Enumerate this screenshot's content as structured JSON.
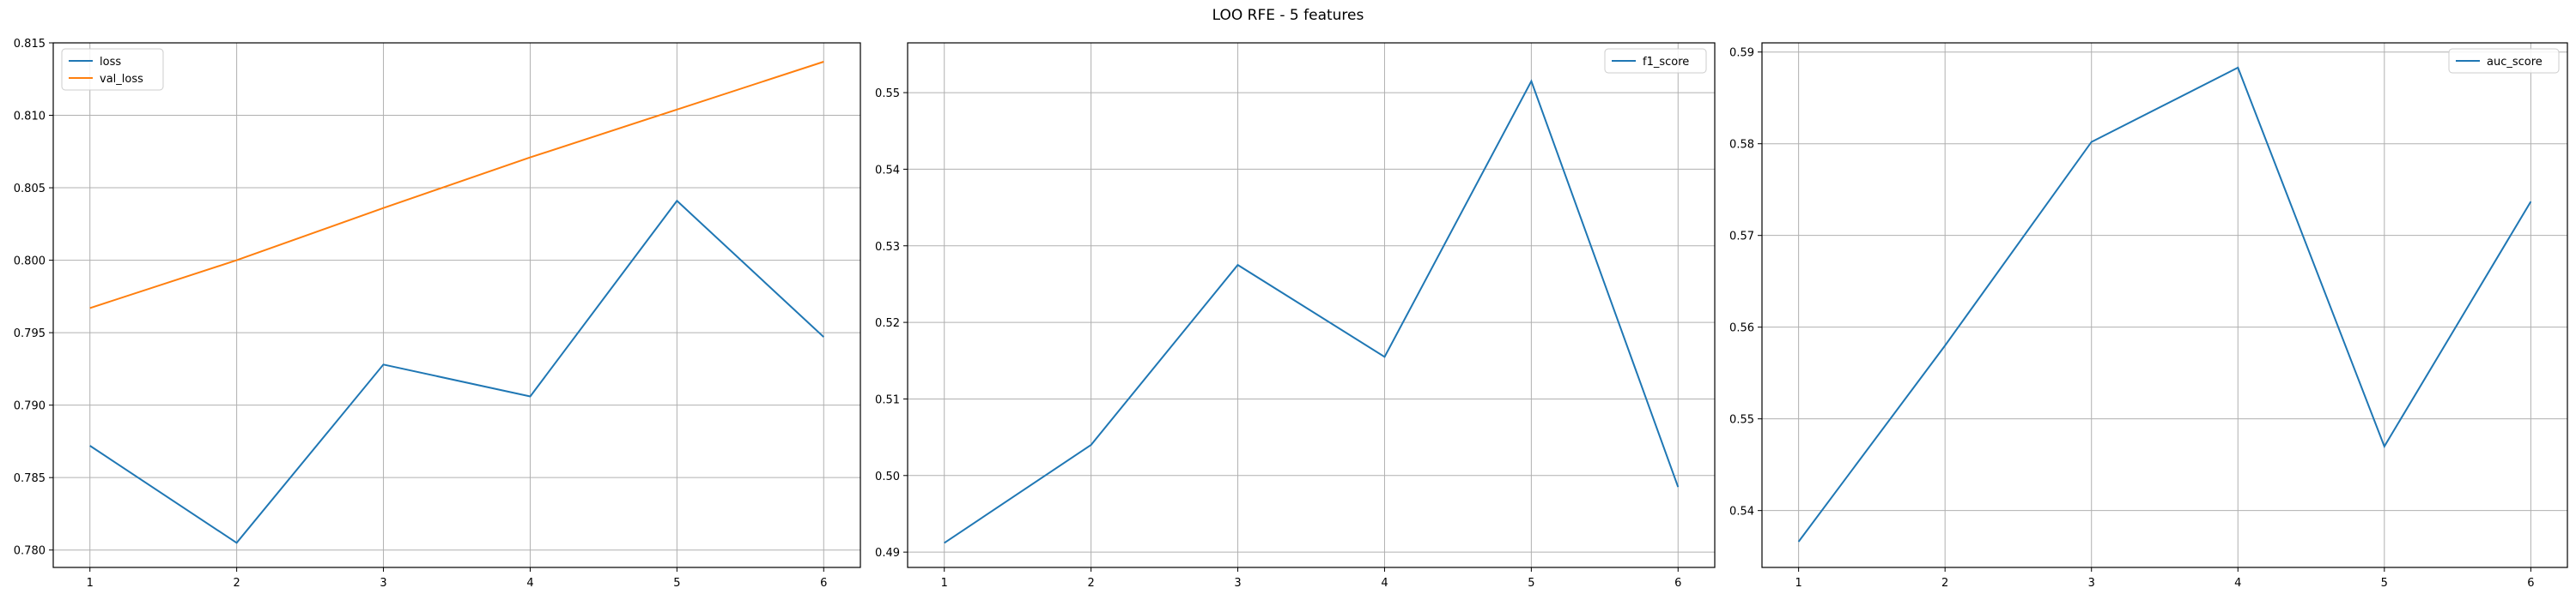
{
  "figure": {
    "title": "LOO RFE - 5 features"
  },
  "chart_data": [
    {
      "type": "line",
      "x": [
        1,
        2,
        3,
        4,
        5,
        6
      ],
      "xlim": [
        0.75,
        6.25
      ],
      "ylim": [
        0.7788,
        0.815
      ],
      "xticks": [
        1,
        2,
        3,
        4,
        5,
        6
      ],
      "yticks": [
        "0.780",
        "0.785",
        "0.790",
        "0.795",
        "0.800",
        "0.805",
        "0.810",
        "0.815"
      ],
      "grid": true,
      "legend": "upper-left",
      "series": [
        {
          "name": "loss",
          "color": "#1f77b4",
          "values": [
            0.7872,
            0.7805,
            0.7928,
            0.7906,
            0.8041,
            0.7947
          ]
        },
        {
          "name": "val_loss",
          "color": "#ff7f0e",
          "values": [
            0.7967,
            0.8,
            0.8036,
            0.8071,
            0.8104,
            0.8137
          ]
        }
      ]
    },
    {
      "type": "line",
      "x": [
        1,
        2,
        3,
        4,
        5,
        6
      ],
      "xlim": [
        0.75,
        6.25
      ],
      "ylim": [
        0.488,
        0.5565
      ],
      "xticks": [
        1,
        2,
        3,
        4,
        5,
        6
      ],
      "yticks": [
        "0.49",
        "0.50",
        "0.51",
        "0.52",
        "0.53",
        "0.54",
        "0.55"
      ],
      "grid": true,
      "legend": "upper-right",
      "series": [
        {
          "name": "f1_score",
          "color": "#1f77b4",
          "values": [
            0.4912,
            0.504,
            0.5275,
            0.5155,
            0.5515,
            0.4985
          ]
        }
      ]
    },
    {
      "type": "line",
      "x": [
        1,
        2,
        3,
        4,
        5,
        6
      ],
      "xlim": [
        0.75,
        6.25
      ],
      "ylim": [
        0.5338,
        0.591
      ],
      "xticks": [
        1,
        2,
        3,
        4,
        5,
        6
      ],
      "yticks": [
        "0.54",
        "0.55",
        "0.56",
        "0.57",
        "0.58",
        "0.59"
      ],
      "grid": true,
      "legend": "upper-right",
      "series": [
        {
          "name": "auc_score",
          "color": "#1f77b4",
          "values": [
            0.5366,
            0.558,
            0.5802,
            0.5883,
            0.547,
            0.5737
          ]
        }
      ]
    }
  ]
}
